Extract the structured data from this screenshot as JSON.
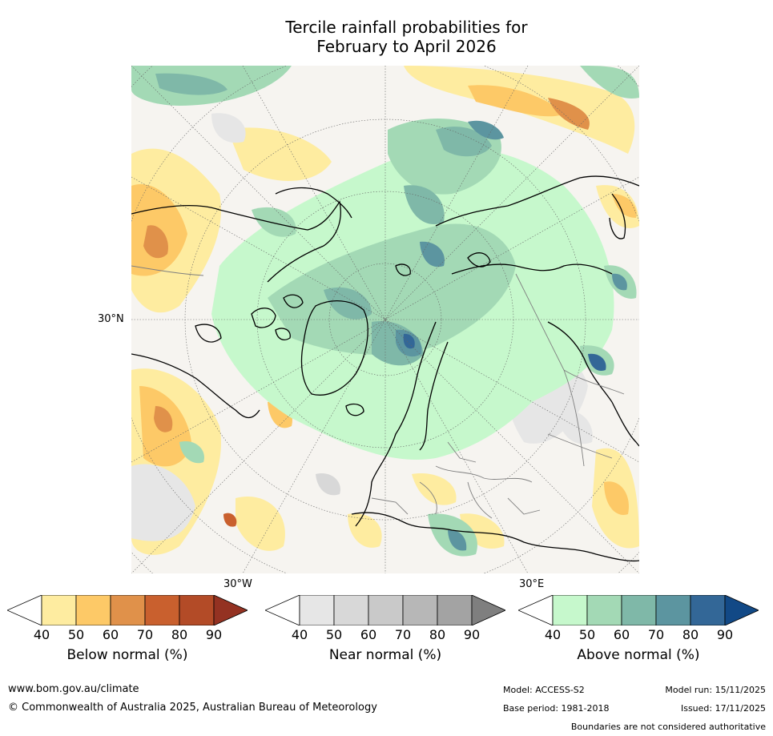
{
  "title": {
    "line1": "Tercile rainfall probabilities for",
    "line2": "February to April 2026"
  },
  "map": {
    "lat_label": "30°N",
    "lon_labels": {
      "west": "30°W",
      "east": "30°E"
    },
    "colors": {
      "land_fill": "#f4f2ee",
      "coast": "#000000",
      "borders": "#7f7f7f",
      "graticule": "#666666"
    }
  },
  "colorbars": [
    {
      "name": "below",
      "label": "Below normal (%)",
      "ticks": [
        "40",
        "50",
        "60",
        "70",
        "80",
        "90"
      ],
      "colors": [
        "#ffffff",
        "#feeca0",
        "#fdc967",
        "#e0914a",
        "#c9602e",
        "#b34b27",
        "#943222"
      ]
    },
    {
      "name": "near",
      "label": "Near normal (%)",
      "ticks": [
        "40",
        "50",
        "60",
        "70",
        "80",
        "90"
      ],
      "colors": [
        "#ffffff",
        "#e6e6e6",
        "#d8d8d8",
        "#c9c9c9",
        "#b7b7b7",
        "#a3a3a3",
        "#7f7f7f"
      ]
    },
    {
      "name": "above",
      "label": "Above normal (%)",
      "ticks": [
        "40",
        "50",
        "60",
        "70",
        "80",
        "90"
      ],
      "colors": [
        "#ffffff",
        "#c6f8cc",
        "#a3d9b5",
        "#7fb8a8",
        "#5c95a0",
        "#336797",
        "#124986"
      ]
    }
  ],
  "footer": {
    "url": "www.bom.gov.au/climate",
    "copyright": "© Commonwealth of Australia 2025, Australian Bureau of Meteorology",
    "model": "Model: ACCESS-S2",
    "base_period": "Base period: 1981-2018",
    "model_run": "Model run: 15/11/2025",
    "issued": "Issued: 17/11/2025",
    "disclaimer": "Boundaries are not considered authoritative"
  }
}
